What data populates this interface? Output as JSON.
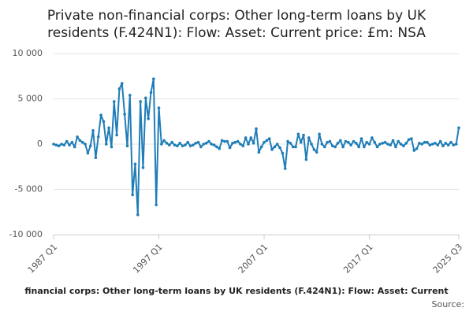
{
  "chart_data": {
    "type": "line",
    "title": [
      "Private non-financial corps: Other long-term loans by UK",
      "residents (F.424N1): Flow: Asset: Current price: £m: NSA"
    ],
    "caption": "financial corps: Other long-term loans by UK residents (F.424N1): Flow: Asset: Current",
    "source": "Source:",
    "categories": [
      "1987 Q1",
      null,
      null,
      null,
      null,
      null,
      null,
      null,
      null,
      null,
      null,
      null,
      null,
      null,
      null,
      null,
      null,
      null,
      null,
      null,
      null,
      null,
      null,
      null,
      null,
      null,
      null,
      null,
      null,
      null,
      null,
      null,
      null,
      null,
      null,
      null,
      null,
      null,
      null,
      null,
      "1997 Q1",
      null,
      null,
      null,
      null,
      null,
      null,
      null,
      null,
      null,
      null,
      null,
      null,
      null,
      null,
      null,
      null,
      null,
      null,
      null,
      null,
      null,
      null,
      null,
      null,
      null,
      null,
      null,
      null,
      null,
      null,
      null,
      null,
      null,
      null,
      null,
      null,
      null,
      null,
      null,
      "2007 Q1",
      null,
      null,
      null,
      null,
      null,
      null,
      null,
      null,
      null,
      null,
      null,
      null,
      null,
      null,
      null,
      null,
      null,
      null,
      null,
      null,
      null,
      null,
      null,
      null,
      null,
      null,
      null,
      null,
      null,
      null,
      null,
      null,
      null,
      null,
      null,
      null,
      null,
      null,
      null,
      "2017 Q1",
      null,
      null,
      null,
      null,
      null,
      null,
      null,
      null,
      null,
      null,
      null,
      null,
      null,
      null,
      null,
      null,
      null,
      null,
      null,
      null,
      null,
      null,
      null,
      null,
      null,
      null,
      null,
      null,
      null,
      null,
      null,
      null,
      null,
      "2025 Q3"
    ],
    "series": [
      {
        "color": "#1f7db8",
        "values": [
          0,
          -100,
          -200,
          0,
          -100,
          300,
          -100,
          200,
          -300,
          800,
          400,
          200,
          0,
          -1000,
          -200,
          1500,
          -1500,
          800,
          3200,
          2500,
          0,
          1800,
          -300,
          4700,
          1000,
          6100,
          6700,
          3300,
          -200,
          5400,
          -5600,
          -2200,
          -7800,
          4700,
          -2600,
          5100,
          2800,
          5700,
          7200,
          -6700,
          4000,
          0,
          400,
          100,
          -100,
          200,
          -100,
          -200,
          100,
          -200,
          -100,
          200,
          -200,
          -100,
          100,
          200,
          -300,
          0,
          100,
          300,
          0,
          -100,
          -300,
          -500,
          400,
          300,
          300,
          -400,
          100,
          200,
          300,
          0,
          -200,
          700,
          0,
          700,
          100,
          1700,
          -900,
          -300,
          200,
          400,
          600,
          -600,
          -300,
          0,
          -400,
          -1000,
          -2700,
          300,
          100,
          -300,
          -300,
          1100,
          200,
          1000,
          -1700,
          700,
          0,
          -600,
          -900,
          1100,
          0,
          -300,
          200,
          300,
          -200,
          -300,
          100,
          400,
          -300,
          300,
          200,
          -100,
          300,
          100,
          -300,
          600,
          -300,
          200,
          0,
          700,
          200,
          -300,
          0,
          100,
          200,
          0,
          -100,
          400,
          -300,
          300,
          0,
          -200,
          100,
          500,
          600,
          -700,
          -500,
          100,
          0,
          200,
          200,
          -100,
          0,
          100,
          -100,
          300,
          -200,
          100,
          -100,
          200,
          -100,
          0,
          1800
        ]
      }
    ],
    "ylim": [
      -10000,
      10000
    ],
    "yticks": [
      {
        "value": -10000,
        "label": "-10 000"
      },
      {
        "value": -5000,
        "label": "-5 000"
      },
      0,
      {
        "value": 5000,
        "label": "5 000"
      },
      {
        "value": 10000,
        "label": "10 000"
      }
    ],
    "grid": true
  }
}
